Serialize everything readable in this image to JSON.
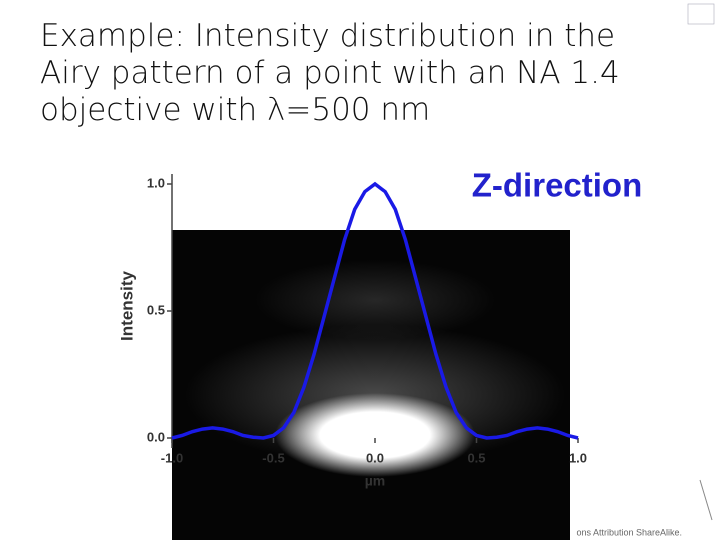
{
  "chart_data": {
    "type": "line",
    "title": "Example: Intensity distribution in the Airy pattern of a point with an NA 1.4 objective with λ=500 nm",
    "annotation": "Z-direction",
    "xlabel": "µm",
    "ylabel": "Intensity",
    "footer": "ons Attribution ShareAlike.",
    "xlim": [
      -1.0,
      1.0
    ],
    "ylim": [
      0.0,
      1.0
    ],
    "xticks": [
      {
        "value": -1.0,
        "label": "-1.0"
      },
      {
        "value": -0.5,
        "label": "-0.5"
      },
      {
        "value": 0,
        "label": "0.0"
      },
      {
        "value": 0.5,
        "label": "0.5"
      },
      {
        "value": 1.0,
        "label": "1.0"
      }
    ],
    "yticks": [
      {
        "value": 0,
        "label": "0.0"
      },
      {
        "value": 0.5,
        "label": "0.5"
      },
      {
        "value": 1.0,
        "label": "1.0"
      }
    ],
    "grid": false,
    "series": [
      {
        "color": "#1a1ae6",
        "x": [
          -1.0,
          -0.95,
          -0.9,
          -0.85,
          -0.8,
          -0.75,
          -0.7,
          -0.65,
          -0.6,
          -0.55,
          -0.5,
          -0.45,
          -0.4,
          -0.35,
          -0.3,
          -0.25,
          -0.2,
          -0.15,
          -0.1,
          -0.05,
          0,
          0.05,
          0.1,
          0.15,
          0.2,
          0.25,
          0.3,
          0.35,
          0.4,
          0.45,
          0.5,
          0.55,
          0.6,
          0.65,
          0.7,
          0.75,
          0.8,
          0.85,
          0.9,
          0.95,
          1.0
        ],
        "values": [
          0.0,
          0.01,
          0.025,
          0.035,
          0.04,
          0.035,
          0.025,
          0.01,
          0.003,
          0.0,
          0.01,
          0.04,
          0.1,
          0.2,
          0.33,
          0.48,
          0.63,
          0.78,
          0.9,
          0.97,
          1.0,
          0.97,
          0.9,
          0.78,
          0.63,
          0.48,
          0.33,
          0.2,
          0.1,
          0.04,
          0.01,
          0.0,
          0.003,
          0.01,
          0.025,
          0.035,
          0.04,
          0.035,
          0.025,
          0.01,
          0.0
        ]
      }
    ]
  }
}
